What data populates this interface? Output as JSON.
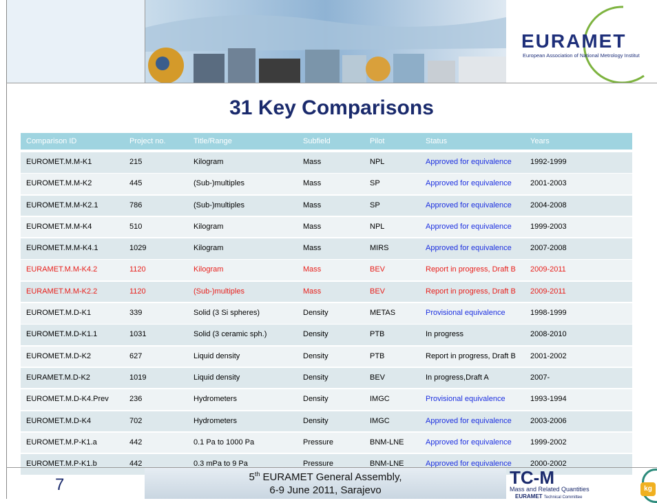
{
  "header": {
    "title": "31 Key Comparisons",
    "logo": "EURAMET",
    "logo_subtitle": "European Association of National Metrology Institut"
  },
  "table": {
    "columns": [
      "Comparison ID",
      "Project no.",
      "Title/Range",
      "Subfield",
      "Pilot",
      "Status",
      "Years"
    ],
    "rows": [
      [
        "EUROMET.M.M-K1",
        "215",
        "Kilogram",
        "Mass",
        "NPL",
        "Approved for equivalence",
        "1992-1999"
      ],
      [
        "EUROMET.M.M-K2",
        "445",
        "(Sub-)multiples",
        "Mass",
        "SP",
        "Approved for equivalence",
        "2001-2003"
      ],
      [
        "EUROMET.M.M-K2.1",
        "786",
        "(Sub-)multiples",
        "Mass",
        "SP",
        "Approved for equivalence",
        "2004-2008"
      ],
      [
        "EUROMET.M.M-K4",
        "510",
        "Kilogram",
        "Mass",
        "NPL",
        "Approved for equivalence",
        "1999-2003"
      ],
      [
        "EUROMET.M.M-K4.1",
        "1029",
        "Kilogram",
        "Mass",
        "MIRS",
        "Approved for equivalence",
        "2007-2008"
      ],
      [
        "EURAMET.M.M-K4.2",
        "1120",
        "Kilogram",
        "Mass",
        "BEV",
        "Report in progress, Draft B",
        "2009-2011"
      ],
      [
        "EURAMET.M.M-K2.2",
        "1120",
        "(Sub-)multiples",
        "Mass",
        "BEV",
        "Report in progress, Draft B",
        "2009-2011"
      ],
      [
        "EUROMET.M.D-K1",
        "339",
        "Solid (3 Si spheres)",
        "Density",
        "METAS",
        "Provisional equivalence",
        "1998-1999"
      ],
      [
        "EUROMET.M.D-K1.1",
        "1031",
        "Solid (3 ceramic sph.)",
        "Density",
        "PTB",
        "In progress",
        "2008-2010"
      ],
      [
        "EUROMET.M.D-K2",
        "627",
        "Liquid density",
        "Density",
        "PTB",
        "Report in progress, Draft B",
        "2001-2002"
      ],
      [
        "EURAMET.M.D-K2",
        "1019",
        "Liquid density",
        "Density",
        "BEV",
        "In progress,Draft A",
        "2007-"
      ],
      [
        "EUROMET.M.D-K4.Prev",
        "236",
        "Hydrometers",
        "Density",
        "IMGC",
        "Provisional equivalence",
        "1993-1994"
      ],
      [
        "EUROMET.M.D-K4",
        "702",
        "Hydrometers",
        "Density",
        "IMGC",
        "Approved for equivalence",
        "2003-2006"
      ],
      [
        "EUROMET.M.P-K1.a",
        "442",
        "0.1 Pa to 1000 Pa",
        "Pressure",
        "BNM-LNE",
        "Approved for equivalence",
        "1999-2002"
      ],
      [
        "EUROMET.M.P-K1.b",
        "442",
        "0.3 mPa to 9 Pa",
        "Pressure",
        "BNM-LNE",
        "Approved for equivalence",
        "2000-2002"
      ]
    ],
    "row_colors": [
      "#000000",
      "#000000",
      "#000000",
      "#000000",
      "#000000",
      "#e8201c",
      "#e8201c",
      "#000000",
      "#000000",
      "#000000",
      "#000000",
      "#000000",
      "#000000",
      "#000000",
      "#000000"
    ],
    "status_colors": [
      "#1c2fe0",
      "#1c2fe0",
      "#1c2fe0",
      "#1c2fe0",
      "#1c2fe0",
      "#e8201c",
      "#e8201c",
      "#1c2fe0",
      "#000000",
      "#000000",
      "#000000",
      "#1c2fe0",
      "#1c2fe0",
      "#1c2fe0",
      "#1c2fe0"
    ]
  },
  "footer": {
    "page": "7",
    "event_number": "5",
    "event_suffix": "th",
    "event_line1": " EURAMET General Assembly,",
    "event_line2": "6-9 June 2011, Sarajevo",
    "tc_logo": "TC-M",
    "tc_subtitle": "Mass and Related Quantities",
    "tc_org": "EURAMET",
    "tc_org_subtitle": "Technical Committee",
    "kg": "kg"
  }
}
